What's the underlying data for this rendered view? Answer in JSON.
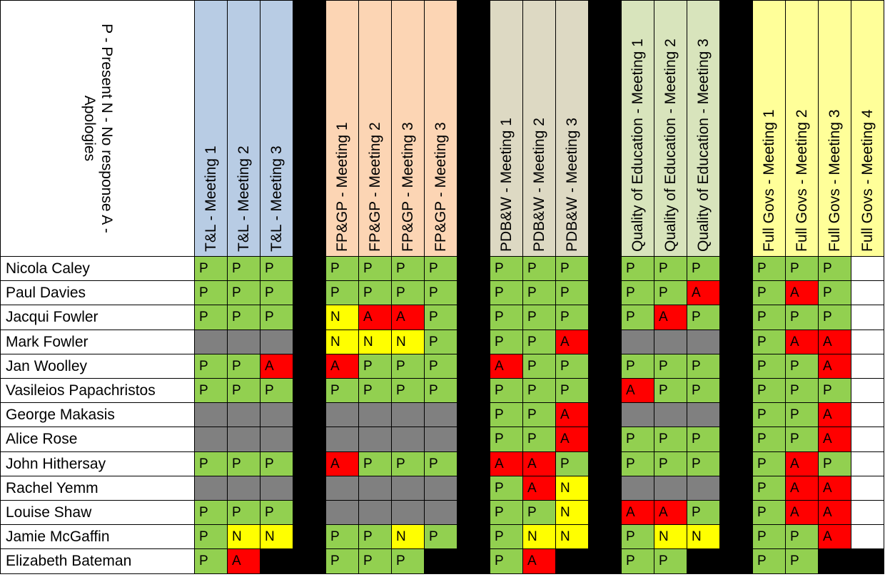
{
  "legend": "P - Present N - No response A -\nApologies",
  "colors": {
    "P": "#92d050",
    "A": "#ff0000",
    "N": "#ffff00",
    "grey": "#808080",
    "blank": "#ffffff",
    "black": "#000000"
  },
  "groups": [
    {
      "color": "#b8cce4",
      "cols": [
        "T&L - Meeting 1",
        "T&L - Meeting 2",
        "T&L - Meeting 3"
      ]
    },
    {
      "color": "#fcd5b4",
      "cols": [
        "FP&GP - Meeting 1",
        "FP&GP - Meeting 2",
        "FP&GP - Meeting 3",
        "FP&GP - Meeting 3"
      ]
    },
    {
      "color": "#ddd9c3",
      "cols": [
        "PDB&W - Meeting 1",
        "PDB&W - Meeting 2",
        "PDB&W - Meeting 3"
      ]
    },
    {
      "color": "#d8e4bc",
      "cols": [
        "Quality of Education - Meeting 1",
        "Quality of Education - Meeting 2",
        "Quality of Education - Meeting 3"
      ]
    },
    {
      "color": "#ffff99",
      "cols": [
        "Full Govs - Meeting 1",
        "Full Govs - Meeting 2",
        "Full Govs - Meeting 3",
        "Full Govs - Meeting 4"
      ]
    }
  ],
  "rows": [
    {
      "name": "Nicola Caley",
      "cells": [
        [
          "P",
          "P",
          "P"
        ],
        [
          "P",
          "P",
          "P",
          "P"
        ],
        [
          "P",
          "P",
          "P"
        ],
        [
          "P",
          "P",
          "P"
        ],
        [
          "P",
          "P",
          "P",
          ""
        ]
      ]
    },
    {
      "name": "Paul Davies",
      "cells": [
        [
          "P",
          "P",
          "P"
        ],
        [
          "P",
          "P",
          "P",
          "P"
        ],
        [
          "P",
          "P",
          "P"
        ],
        [
          "P",
          "P",
          "A"
        ],
        [
          "P",
          "A",
          "P",
          ""
        ]
      ]
    },
    {
      "name": "Jacqui Fowler",
      "cells": [
        [
          "P",
          "P",
          "P"
        ],
        [
          "N",
          "A",
          "A",
          "P"
        ],
        [
          "P",
          "P",
          "P"
        ],
        [
          "P",
          "A",
          "P"
        ],
        [
          "P",
          "P",
          "P",
          ""
        ]
      ]
    },
    {
      "name": "Mark Fowler",
      "cells": [
        [
          "-",
          "-",
          "-"
        ],
        [
          "N",
          "N",
          "N",
          "P"
        ],
        [
          "P",
          "P",
          "A"
        ],
        [
          "-",
          "-",
          "-"
        ],
        [
          "P",
          "A",
          "A",
          ""
        ]
      ]
    },
    {
      "name": "Jan Woolley",
      "cells": [
        [
          "P",
          "P",
          "A"
        ],
        [
          "A",
          "P",
          "P",
          "P"
        ],
        [
          "A",
          "P",
          "P"
        ],
        [
          "P",
          "P",
          "P"
        ],
        [
          "P",
          "P",
          "A",
          ""
        ]
      ]
    },
    {
      "name": "Vasileios Papachristos",
      "cells": [
        [
          "P",
          "P",
          "P"
        ],
        [
          "P",
          "P",
          "P",
          "P"
        ],
        [
          "P",
          "P",
          "P"
        ],
        [
          "A",
          "P",
          "P"
        ],
        [
          "P",
          "P",
          "P",
          ""
        ]
      ]
    },
    {
      "name": "George Makasis",
      "cells": [
        [
          "-",
          "-",
          "-"
        ],
        [
          "-",
          "-",
          "-",
          "-"
        ],
        [
          "P",
          "P",
          "A"
        ],
        [
          "-",
          "-",
          "-"
        ],
        [
          "P",
          "P",
          "A",
          ""
        ]
      ]
    },
    {
      "name": "Alice Rose",
      "cells": [
        [
          "-",
          "-",
          "-"
        ],
        [
          "-",
          "-",
          "-",
          "-"
        ],
        [
          "P",
          "P",
          "A"
        ],
        [
          "P",
          "P",
          "P"
        ],
        [
          "P",
          "P",
          "A",
          ""
        ]
      ]
    },
    {
      "name": "John Hithersay",
      "cells": [
        [
          "P",
          "P",
          "P"
        ],
        [
          "A",
          "P",
          "P",
          "P"
        ],
        [
          "A",
          "A",
          "P"
        ],
        [
          "P",
          "P",
          "P"
        ],
        [
          "P",
          "A",
          "P",
          ""
        ]
      ]
    },
    {
      "name": "Rachel Yemm",
      "cells": [
        [
          "-",
          "-",
          "-"
        ],
        [
          "-",
          "-",
          "-",
          "-"
        ],
        [
          "P",
          "A",
          "N"
        ],
        [
          "-",
          "-",
          "-"
        ],
        [
          "P",
          "A",
          "A",
          ""
        ]
      ]
    },
    {
      "name": "Louise Shaw",
      "cells": [
        [
          "P",
          "P",
          "P"
        ],
        [
          "-",
          "-",
          "-",
          "-"
        ],
        [
          "P",
          "P",
          "N"
        ],
        [
          "A",
          "A",
          "P"
        ],
        [
          "P",
          "A",
          "A",
          ""
        ]
      ]
    },
    {
      "name": "Jamie McGaffin",
      "cells": [
        [
          "P",
          "N",
          "N"
        ],
        [
          "P",
          "P",
          "N",
          "P"
        ],
        [
          "P",
          "N",
          "N"
        ],
        [
          "P",
          "N",
          "N"
        ],
        [
          "P",
          "P",
          "A",
          ""
        ]
      ]
    },
    {
      "name": "Elizabeth Bateman",
      "cells": [
        [
          "P",
          "A",
          "#"
        ],
        [
          "P",
          "P",
          "P",
          "#"
        ],
        [
          "P",
          "A",
          "#"
        ],
        [
          "P",
          "P",
          "#"
        ],
        [
          "P",
          "P",
          "#",
          "#"
        ]
      ]
    }
  ]
}
